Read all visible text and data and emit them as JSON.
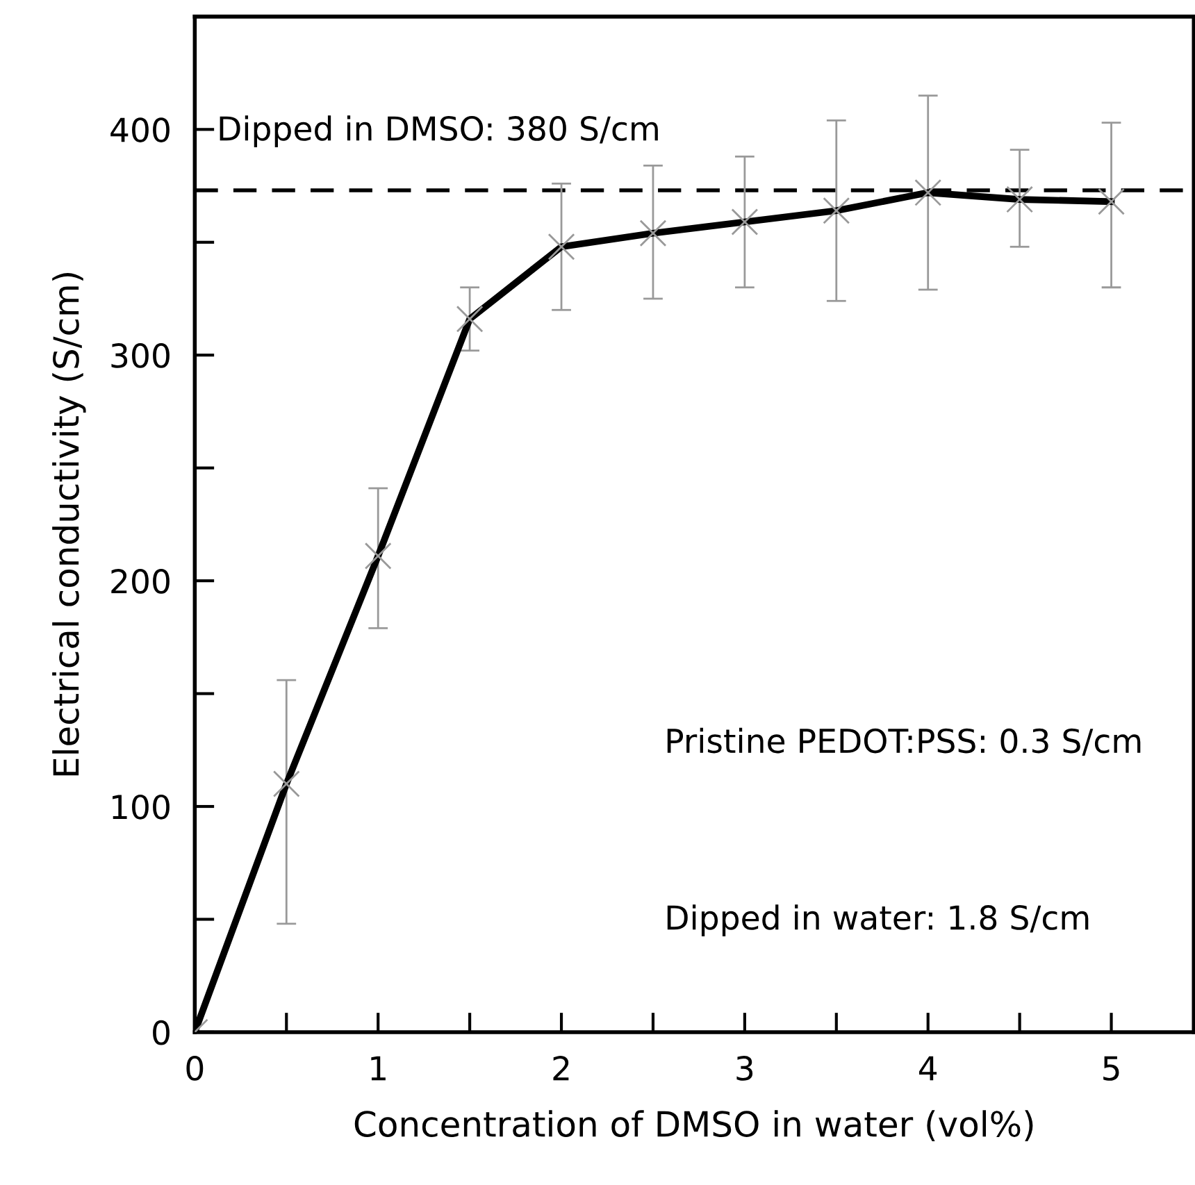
{
  "chart_data": {
    "type": "line",
    "xlabel": "Concentration of DMSO in water (vol%)",
    "ylabel": "Electrical conductivity (S/cm)",
    "x": [
      0,
      0.5,
      1,
      1.5,
      2,
      2.5,
      3,
      3.5,
      4,
      4.5,
      5
    ],
    "series": [
      {
        "color": "#000000",
        "values": [
          0,
          110,
          211,
          316,
          348,
          354,
          359,
          364,
          372,
          369,
          368
        ],
        "errors": [
          null,
          [
            48,
            156
          ],
          [
            179,
            241
          ],
          [
            302,
            330
          ],
          [
            320,
            376
          ],
          [
            325,
            384
          ],
          [
            330,
            388
          ],
          [
            324,
            404
          ],
          [
            329,
            415
          ],
          [
            348,
            391
          ],
          [
            330,
            403
          ]
        ]
      }
    ],
    "marker": "cross",
    "line_style": "solid",
    "xlim": [
      0,
      5.45
    ],
    "ylim": [
      0,
      450
    ],
    "xticks": [
      0,
      {
        "value": 0.5,
        "label": null
      },
      1,
      {
        "value": 1.5,
        "label": null
      },
      2,
      {
        "value": 2.5,
        "label": null
      },
      3,
      {
        "value": 3.5,
        "label": null
      },
      4,
      {
        "value": 4.5,
        "label": null
      },
      5
    ],
    "yticks": [
      0,
      {
        "value": 50,
        "label": null
      },
      100,
      {
        "value": 150,
        "label": null
      },
      200,
      {
        "value": 250,
        "label": null
      },
      300,
      {
        "value": 350,
        "label": null
      },
      400
    ],
    "ref_lines": [
      {
        "axis": "y",
        "value": 373,
        "color": "#000000",
        "line_style": "dashed"
      }
    ],
    "annotations": [
      "Dipped in DMSO: 380 S/cm",
      "Pristine PEDOT:PSS: 0.3 S/cm",
      "Dipped in water: 1.8 S/cm"
    ],
    "grid": false,
    "legend": false
  }
}
